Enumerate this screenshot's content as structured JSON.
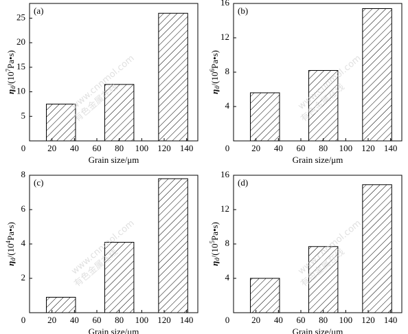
{
  "chart_data": [
    {
      "type": "bar",
      "label": "(a)",
      "x": [
        28,
        80,
        128
      ],
      "values": [
        7.5,
        11.5,
        26
      ],
      "color": "#000000",
      "hatch": true,
      "xlim": [
        0,
        150
      ],
      "xticks": [
        0,
        20,
        40,
        60,
        80,
        100,
        120,
        140
      ],
      "ylim": [
        0,
        28
      ],
      "yticks": [
        5,
        10,
        15,
        20,
        25
      ],
      "xlabel": "Grain size/μm",
      "ylabel": {
        "symbol": "η",
        "subscript": "d",
        "prefix": "/(10",
        "exponent": "7",
        "suffix": "Pa•s)"
      }
    },
    {
      "type": "bar",
      "label": "(b)",
      "x": [
        28,
        80,
        128
      ],
      "values": [
        5.6,
        8.2,
        15.4
      ],
      "color": "#000000",
      "hatch": true,
      "xlim": [
        0,
        150
      ],
      "xticks": [
        0,
        20,
        40,
        60,
        80,
        100,
        120,
        140
      ],
      "ylim": [
        0,
        16
      ],
      "yticks": [
        4,
        8,
        12,
        16
      ],
      "xlabel": "Grain size/μm",
      "ylabel": {
        "symbol": "η",
        "subscript": "d",
        "prefix": "/(10",
        "exponent": "6",
        "suffix": "Pa•s)"
      }
    },
    {
      "type": "bar",
      "label": "(c)",
      "x": [
        28,
        80,
        128
      ],
      "values": [
        0.9,
        4.1,
        7.8
      ],
      "color": "#000000",
      "hatch": true,
      "xlim": [
        0,
        150
      ],
      "xticks": [
        0,
        20,
        40,
        60,
        80,
        100,
        120,
        140
      ],
      "ylim": [
        0,
        8
      ],
      "yticks": [
        2,
        4,
        6,
        8
      ],
      "xlabel": "Grain size/μm",
      "ylabel": {
        "symbol": "η",
        "subscript": "d",
        "prefix": "/(10",
        "exponent": "4",
        "suffix": "Pa•s)"
      }
    },
    {
      "type": "bar",
      "label": "(d)",
      "x": [
        28,
        80,
        128
      ],
      "values": [
        4.0,
        7.7,
        14.9
      ],
      "color": "#000000",
      "hatch": true,
      "xlim": [
        0,
        150
      ],
      "xticks": [
        0,
        20,
        40,
        60,
        80,
        100,
        120,
        140
      ],
      "ylim": [
        0,
        16
      ],
      "yticks": [
        4,
        8,
        12,
        16
      ],
      "xlabel": "Grain size/μm",
      "ylabel": {
        "symbol": "η",
        "subscript": "d",
        "prefix": "/(10",
        "exponent": "5",
        "suffix": "Pa•s)"
      }
    }
  ],
  "watermark": {
    "text": "有色金属在线",
    "url": "www.cnnmol.com"
  }
}
